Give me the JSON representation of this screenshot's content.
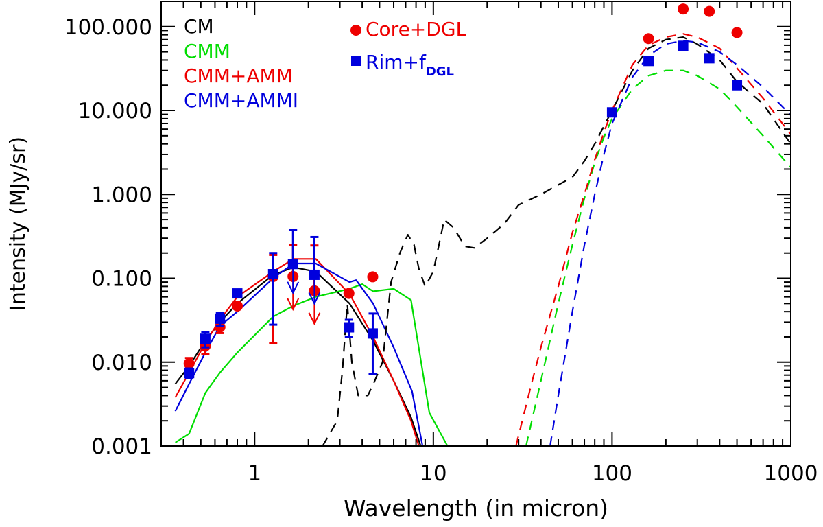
{
  "chart_data": {
    "type": "scatter",
    "title": "",
    "xlabel": "Wavelength (in micron)",
    "ylabel": "Intensity (MJy/sr)",
    "xscale": "log",
    "yscale": "log",
    "xlim": [
      0.3,
      1000
    ],
    "ylim": [
      0.001,
      200
    ],
    "xticks": [
      {
        "value": 1,
        "label": "1"
      },
      {
        "value": 10,
        "label": "10"
      },
      {
        "value": 100,
        "label": "100"
      },
      {
        "value": 1000,
        "label": "1000"
      }
    ],
    "yticks": [
      {
        "value": 0.001,
        "label": "0.001"
      },
      {
        "value": 0.01,
        "label": "0.010"
      },
      {
        "value": 0.1,
        "label": "0.100"
      },
      {
        "value": 1,
        "label": "1.000"
      },
      {
        "value": 10,
        "label": "10.000"
      },
      {
        "value": 100,
        "label": "100.000"
      }
    ],
    "grid": false,
    "legend_placement": "top-left",
    "line_legend": [
      {
        "label": "CM",
        "color": "#000000"
      },
      {
        "label": "CMM",
        "color": "#00dd00"
      },
      {
        "label": "CMM+AMM",
        "color": "#ee0000"
      },
      {
        "label": "CMM+AMMI",
        "color": "#0000dd"
      }
    ],
    "marker_legend": [
      {
        "label": "Core+DGL",
        "color": "#ee0000",
        "marker": "circle"
      },
      {
        "label": "Rim+f",
        "subscript": "DGL",
        "color": "#0000dd",
        "marker": "square"
      }
    ],
    "series": [
      {
        "name": "CM (core, solid)",
        "color": "#000000",
        "style": "solid",
        "x": [
          0.36,
          0.43,
          0.53,
          0.64,
          0.8,
          1.27,
          1.65,
          2.2,
          3.4,
          4.6,
          6.0,
          7.5,
          8.5
        ],
        "y": [
          0.0055,
          0.009,
          0.018,
          0.03,
          0.05,
          0.11,
          0.135,
          0.12,
          0.05,
          0.018,
          0.006,
          0.0022,
          0.001
        ]
      },
      {
        "name": "CMM (core, solid)",
        "color": "#00dd00",
        "style": "solid",
        "x": [
          0.36,
          0.43,
          0.53,
          0.64,
          0.8,
          1.27,
          1.65,
          2.2,
          3.4,
          4.0,
          4.6,
          6.0,
          7.5,
          9.5,
          12
        ],
        "y": [
          0.0011,
          0.0014,
          0.0043,
          0.0075,
          0.013,
          0.035,
          0.047,
          0.06,
          0.075,
          0.085,
          0.07,
          0.075,
          0.055,
          0.0025,
          0.001
        ]
      },
      {
        "name": "CMM+AMM (core, solid)",
        "color": "#ee0000",
        "style": "solid",
        "x": [
          0.36,
          0.43,
          0.53,
          0.64,
          0.8,
          1.27,
          1.65,
          2.2,
          3.4,
          4.6,
          6.0,
          7.5,
          8.3
        ],
        "y": [
          0.0038,
          0.0075,
          0.017,
          0.032,
          0.06,
          0.12,
          0.17,
          0.17,
          0.065,
          0.02,
          0.006,
          0.002,
          0.001
        ]
      },
      {
        "name": "CMM+AMMI (core, solid)",
        "color": "#0000dd",
        "style": "solid",
        "x": [
          0.36,
          0.43,
          0.53,
          0.64,
          0.8,
          1.27,
          1.65,
          2.2,
          3.4,
          3.7,
          4.6,
          6.0,
          7.6,
          8.7
        ],
        "y": [
          0.0026,
          0.0055,
          0.013,
          0.027,
          0.04,
          0.1,
          0.15,
          0.15,
          0.09,
          0.095,
          0.05,
          0.015,
          0.0045,
          0.001
        ]
      },
      {
        "name": "CM (dashed)",
        "color": "#000000",
        "style": "dashed",
        "x": [
          2.4,
          2.9,
          3.1,
          3.3,
          3.5,
          3.8,
          4.3,
          4.7,
          5.2,
          5.8,
          6.5,
          7.2,
          7.8,
          8.3,
          9.0,
          10.0,
          11.5,
          13,
          15,
          17,
          20,
          25,
          30,
          40,
          50,
          60,
          70,
          80,
          90,
          100,
          130,
          160,
          200,
          250,
          300,
          400,
          500,
          700,
          1000
        ],
        "y": [
          0.001,
          0.002,
          0.008,
          0.05,
          0.01,
          0.004,
          0.004,
          0.006,
          0.01,
          0.09,
          0.2,
          0.33,
          0.25,
          0.13,
          0.08,
          0.12,
          0.5,
          0.4,
          0.24,
          0.23,
          0.3,
          0.45,
          0.75,
          1.0,
          1.3,
          1.6,
          2.5,
          4.0,
          6.5,
          10,
          30,
          55,
          70,
          75,
          62,
          40,
          22,
          12,
          4
        ]
      },
      {
        "name": "CMM (dashed)",
        "color": "#00dd00",
        "style": "dashed",
        "x": [
          33,
          40,
          50,
          60,
          70,
          80,
          90,
          100,
          130,
          160,
          200,
          250,
          300,
          400,
          500,
          700,
          1000
        ],
        "y": [
          0.001,
          0.006,
          0.05,
          0.25,
          0.9,
          2.4,
          4.8,
          8,
          18,
          26,
          30,
          30,
          26,
          18,
          11,
          5,
          2.1
        ]
      },
      {
        "name": "CMM+AMM (dashed)",
        "color": "#ee0000",
        "style": "dashed",
        "x": [
          29,
          35,
          40,
          50,
          60,
          70,
          80,
          90,
          100,
          130,
          160,
          200,
          250,
          300,
          400,
          500,
          700,
          1000
        ],
        "y": [
          0.001,
          0.005,
          0.015,
          0.08,
          0.35,
          1.0,
          2.6,
          5.5,
          10,
          35,
          60,
          75,
          82,
          75,
          55,
          32,
          14,
          5.2
        ]
      },
      {
        "name": "CMM+AMMI (dashed)",
        "color": "#0000dd",
        "style": "dashed",
        "x": [
          45,
          50,
          60,
          70,
          80,
          90,
          100,
          130,
          160,
          200,
          250,
          300,
          400,
          500,
          700,
          1000
        ],
        "y": [
          0.001,
          0.004,
          0.04,
          0.25,
          1.0,
          3.0,
          7.0,
          25,
          45,
          62,
          68,
          65,
          50,
          35,
          19,
          8.8
        ]
      }
    ],
    "points": [
      {
        "name": "Core+DGL",
        "color": "#ee0000",
        "marker": "circle",
        "x": [
          0.43,
          0.53,
          0.64,
          0.8,
          1.27,
          1.64,
          2.16,
          3.37,
          4.58,
          160,
          250,
          350,
          500
        ],
        "y": [
          0.0096,
          0.0156,
          0.0262,
          0.0467,
          0.105,
          0.105,
          0.071,
          0.066,
          0.104,
          72,
          162,
          152,
          85
        ],
        "yerr_low": [
          0.0012,
          0.003,
          0.004,
          0.0,
          0.088,
          null,
          null,
          0.0,
          0.0,
          0,
          0,
          0,
          0
        ],
        "yerr_high": [
          0.0016,
          0.003,
          0.004,
          0.0,
          0.085,
          0.145,
          0.175,
          0.0,
          0.0,
          0,
          0,
          0,
          0
        ],
        "upper_limit": [
          false,
          false,
          false,
          false,
          false,
          true,
          true,
          false,
          false,
          false,
          false,
          false,
          false
        ]
      },
      {
        "name": "Rim+fDGL",
        "color": "#0000dd",
        "marker": "square",
        "x": [
          0.43,
          0.53,
          0.64,
          0.8,
          1.27,
          1.64,
          2.16,
          3.37,
          4.58,
          100,
          160,
          250,
          350,
          500
        ],
        "y": [
          0.0074,
          0.019,
          0.033,
          0.066,
          0.112,
          0.148,
          0.11,
          0.026,
          0.022,
          9.5,
          39,
          59,
          42,
          20
        ],
        "yerr_low": [
          0.001,
          0.004,
          0.006,
          0.0,
          0.084,
          null,
          null,
          0.006,
          0.0148,
          0,
          0,
          0,
          0,
          0
        ],
        "yerr_high": [
          0.001,
          0.004,
          0.006,
          0.0,
          0.088,
          0.232,
          0.2,
          0.006,
          0.016,
          0,
          0,
          0,
          0,
          0
        ],
        "upper_limit": [
          false,
          false,
          false,
          false,
          false,
          true,
          true,
          false,
          false,
          false,
          false,
          false,
          false,
          false
        ]
      }
    ]
  }
}
